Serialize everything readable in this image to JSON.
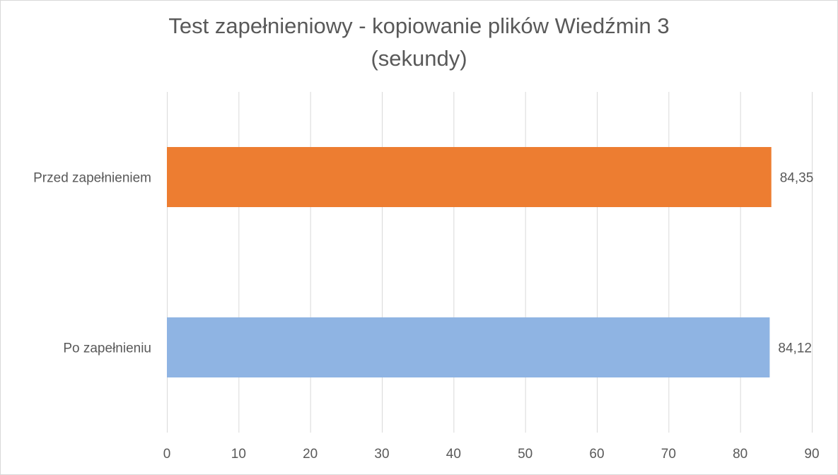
{
  "chart_data": {
    "type": "bar",
    "orientation": "horizontal",
    "title": "Test zapełnieniowy - kopiowanie plików Wiedźmin 3",
    "subtitle": "(sekundy)",
    "categories": [
      "Przed zapełnieniem",
      "Po zapełnieniu"
    ],
    "values": [
      84.35,
      84.12
    ],
    "value_labels": [
      "84,35",
      "84,12"
    ],
    "colors": [
      "#ED7D31",
      "#8FB4E3"
    ],
    "xlim": [
      0,
      90
    ],
    "x_ticks": [
      0,
      10,
      20,
      30,
      40,
      50,
      60,
      70,
      80,
      90
    ],
    "grid": true,
    "gridline_color": "#d9d9d9",
    "text_color": "#595959"
  }
}
